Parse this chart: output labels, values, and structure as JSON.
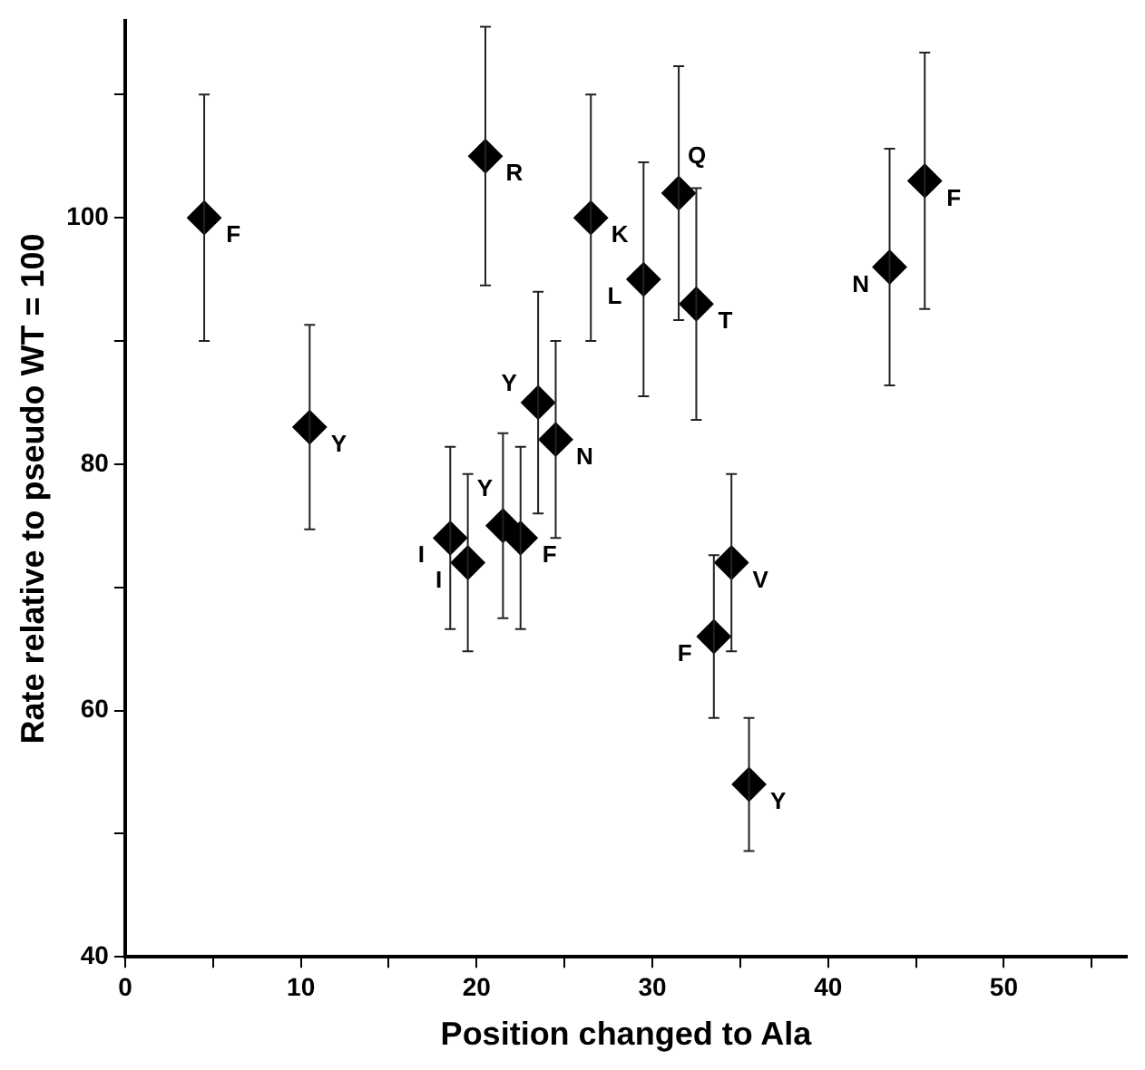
{
  "chart_data": {
    "type": "scatter",
    "xlabel": "Position changed to Ala",
    "ylabel": "Rate relative to pseudo WT = 100",
    "x": [
      4.5,
      10.5,
      18.5,
      19.5,
      20.5,
      21.5,
      22.5,
      23.5,
      24.5,
      26.5,
      29.5,
      31.5,
      32.5,
      33.5,
      34.5,
      35.5,
      43.5,
      45.5
    ],
    "series": [
      {
        "color": "#000000",
        "values": [
          100,
          83,
          74,
          72,
          105,
          75,
          74,
          85,
          82,
          100,
          95,
          102,
          93,
          66,
          72,
          54,
          96,
          103
        ],
        "errors": [
          10,
          8.3,
          7.4,
          7.2,
          10.5,
          7.5,
          7.4,
          9,
          8,
          10,
          9.5,
          10.3,
          9.4,
          6.6,
          7.2,
          5.4,
          9.6,
          10.4
        ],
        "value_labels": [
          "F",
          "Y",
          "I",
          "I",
          "R",
          "Y",
          "F",
          "Y",
          "N",
          "K",
          "L",
          "Q",
          "T",
          "F",
          "V",
          "Y",
          "N",
          "F"
        ]
      }
    ],
    "marker": "diamond",
    "grid": false,
    "legend": false,
    "xlim": [
      0,
      57
    ],
    "xticks": [
      0,
      {
        "value": 5,
        "label": null
      },
      10,
      {
        "value": 15,
        "label": null
      },
      20,
      {
        "value": 25,
        "label": null
      },
      30,
      {
        "value": 35,
        "label": null
      },
      40,
      {
        "value": 45,
        "label": null
      },
      50,
      {
        "value": 55,
        "label": null
      }
    ],
    "ylim": [
      40,
      116
    ],
    "yticks": [
      40,
      {
        "value": 50,
        "label": null
      },
      60,
      {
        "value": 70,
        "label": null
      },
      80,
      {
        "value": 90,
        "label": null
      },
      100,
      {
        "value": 110,
        "label": null
      }
    ]
  }
}
